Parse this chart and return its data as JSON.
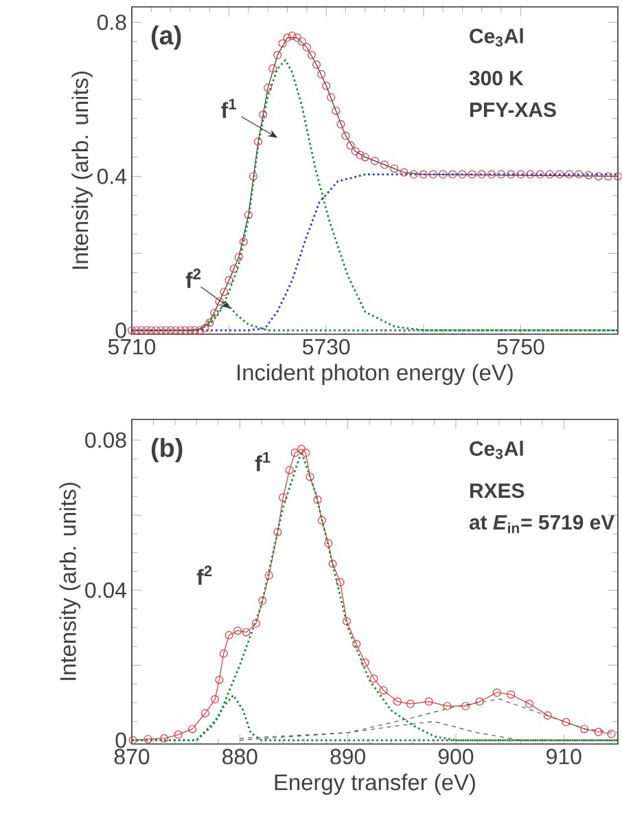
{
  "chart_data": [
    {
      "type": "line",
      "xlabel": "Incident photon energy (eV)",
      "ylabel": "Intensity (arb. units)",
      "xlim": [
        5710,
        5760
      ],
      "ylim": [
        -0.01,
        0.84
      ],
      "xticks": [
        5710,
        {
          "value": 5720,
          "label": null
        },
        5730,
        {
          "value": 5740,
          "label": null
        },
        5750
      ],
      "yticks": [
        0,
        {
          "value": 0.2,
          "label": null
        },
        0.4,
        {
          "value": 0.6,
          "label": null
        },
        0.8
      ],
      "annotations": [
        "(a)",
        "Ce$_{3}$Al",
        "300 K",
        "PFY-XAS",
        "f$^{1}$",
        {
          "text": "f$^{2}$",
          "x": 5720.2,
          "y": 0.056
        }
      ],
      "series": [
        {
          "type": "scatter",
          "marker": "circle",
          "color": "#e5323c",
          "x": [
            5710,
            5710.5,
            5711,
            5711.5,
            5712,
            5712.5,
            5713,
            5713.5,
            5714,
            5714.5,
            5715,
            5715.5,
            5716,
            5716.5,
            5717,
            5717.5,
            5718,
            5718.5,
            5719,
            5719.5,
            5720,
            5720.5,
            5721,
            5721.5,
            5722,
            5722.5,
            5723,
            5723.5,
            5724,
            5724.5,
            5725,
            5725.5,
            5726,
            5726.5,
            5727,
            5727.5,
            5728,
            5728.5,
            5729,
            5729.5,
            5730,
            5730.5,
            5731,
            5731.5,
            5732,
            5732.5,
            5733,
            5733.5,
            5734,
            5735,
            5736,
            5737,
            5738,
            5739,
            5740,
            5741,
            5742,
            5743,
            5744,
            5745,
            5746,
            5747,
            5748,
            5749,
            5750,
            5751,
            5752,
            5753,
            5754,
            5755,
            5756,
            5757,
            5758,
            5759,
            5760
          ],
          "values": [
            0,
            0,
            0,
            0,
            0,
            0,
            0,
            0,
            0,
            0,
            0,
            0,
            0,
            0,
            0,
            0.005,
            0.02,
            0.045,
            0.075,
            0.1,
            0.13,
            0.16,
            0.19,
            0.23,
            0.3,
            0.4,
            0.49,
            0.56,
            0.63,
            0.68,
            0.715,
            0.745,
            0.76,
            0.765,
            0.76,
            0.75,
            0.735,
            0.715,
            0.69,
            0.665,
            0.635,
            0.605,
            0.57,
            0.535,
            0.505,
            0.48,
            0.465,
            0.455,
            0.45,
            0.44,
            0.43,
            0.42,
            0.41,
            0.405,
            0.405,
            0.405,
            0.405,
            0.405,
            0.405,
            0.405,
            0.405,
            0.405,
            0.405,
            0.405,
            0.405,
            0.405,
            0.405,
            0.405,
            0.405,
            0.405,
            0.405,
            0.403,
            0.4,
            0.4,
            0.4
          ]
        },
        {
          "line_style": "solid",
          "color": "#333333",
          "x": [
            5710,
            5716,
            5717,
            5718,
            5719,
            5720,
            5721,
            5722,
            5723,
            5724,
            5725,
            5726,
            5727,
            5728,
            5729,
            5730,
            5731,
            5732,
            5733,
            5734,
            5736,
            5738,
            5740,
            5760
          ],
          "values": [
            0,
            0,
            0.003,
            0.02,
            0.075,
            0.13,
            0.19,
            0.3,
            0.49,
            0.63,
            0.715,
            0.76,
            0.76,
            0.735,
            0.69,
            0.635,
            0.57,
            0.505,
            0.465,
            0.45,
            0.43,
            0.41,
            0.405,
            0.4
          ]
        },
        {
          "line_style": "dotted",
          "color": "#1a8a3a",
          "x": [
            5716,
            5717,
            5718,
            5719,
            5720,
            5721,
            5722,
            5723,
            5724,
            5725,
            5725.8,
            5726.5,
            5727.5,
            5728.9,
            5730.3,
            5732.2,
            5734,
            5737,
            5740,
            5760
          ],
          "values": [
            0,
            0.003,
            0.015,
            0.045,
            0.1,
            0.17,
            0.29,
            0.48,
            0.61,
            0.68,
            0.702,
            0.67,
            0.583,
            0.418,
            0.286,
            0.143,
            0.048,
            0.01,
            0,
            0
          ]
        },
        {
          "line_style": "dotted",
          "color": "#1a8a3a",
          "x": [
            5710,
            5717,
            5718.5,
            5719.7,
            5720.8,
            5722,
            5724,
            5760
          ],
          "values": [
            0,
            0,
            0.04,
            0.071,
            0.04,
            0.015,
            0,
            0
          ]
        },
        {
          "line_style": "dotted",
          "color": "#2040c0",
          "x": [
            5710,
            5722,
            5723.7,
            5725,
            5726.5,
            5727.9,
            5729.3,
            5731.2,
            5734,
            5760
          ],
          "values": [
            0,
            0,
            0.005,
            0.05,
            0.13,
            0.238,
            0.333,
            0.387,
            0.405,
            0.405
          ]
        }
      ]
    },
    {
      "type": "line",
      "xlabel": "Energy transfer (eV)",
      "ylabel": "Intensity (arb. units)",
      "xlim": [
        870,
        915
      ],
      "ylim": [
        -0.001,
        0.0855
      ],
      "xticks": [
        870,
        880,
        890,
        900,
        910
      ],
      "yticks": [
        0,
        {
          "value": 0.02,
          "label": null
        },
        0.04,
        {
          "value": 0.06,
          "label": null
        },
        0.08
      ],
      "annotations": [
        "(b)",
        "Ce$_{3}$Al",
        "RXES",
        "at *E*$_{in}$= 5719 eV",
        "f$^{1}$",
        "f$^{2}$"
      ],
      "series": [
        {
          "marker": "circle",
          "line_style": "solid",
          "color": "#e5323c",
          "x": [
            870.1,
            871.5,
            873.0,
            874.3,
            875.6,
            876.8,
            877.7,
            878.1,
            878.5,
            879.0,
            879.8,
            880.6,
            881.5,
            882.1,
            882.7,
            883.5,
            884.0,
            884.6,
            885.1,
            885.7,
            886.1,
            886.5,
            887.2,
            887.6,
            888.2,
            888.6,
            889.3,
            889.9,
            890.8,
            891.6,
            892.4,
            893.3,
            894.6,
            895.8,
            897.5,
            899.2,
            900.9,
            902.2,
            903.8,
            905.1,
            906.8,
            908.5,
            910.2,
            911.9,
            913.2,
            914.4
          ],
          "values": [
            0,
            0.0003,
            0.0005,
            0.0015,
            0.003,
            0.0072,
            0.0109,
            0.0161,
            0.0231,
            0.028,
            0.0292,
            0.0288,
            0.0311,
            0.0372,
            0.0439,
            0.0555,
            0.0647,
            0.072,
            0.0766,
            0.0776,
            0.0766,
            0.0702,
            0.0641,
            0.0586,
            0.0525,
            0.047,
            0.0421,
            0.0317,
            0.0256,
            0.0207,
            0.0164,
            0.0133,
            0.0103,
            0.0097,
            0.0103,
            0.0091,
            0.0091,
            0.0103,
            0.0127,
            0.0122,
            0.0097,
            0.0066,
            0.0048,
            0.003,
            0.0022,
            0.0017
          ]
        },
        {
          "line_style": "dotted",
          "color": "#1a8a3a",
          "x": [
            870,
            876,
            878,
            880,
            882,
            884,
            885.7,
            887,
            888.5,
            890,
            892,
            894,
            896,
            898,
            900,
            915
          ],
          "values": [
            0,
            0,
            0.006,
            0.02,
            0.036,
            0.062,
            0.077,
            0.066,
            0.048,
            0.03,
            0.016,
            0.008,
            0.004,
            0.001,
            0,
            0
          ]
        },
        {
          "line_style": "dotted",
          "color": "#1a8a3a",
          "x": [
            870,
            876,
            877.5,
            878.5,
            879.4,
            880.3,
            881,
            882,
            915
          ],
          "values": [
            0,
            0,
            0.004,
            0.009,
            0.012,
            0.008,
            0.002,
            0,
            0
          ]
        },
        {
          "line_style": "dashed",
          "color": "#555555",
          "x": [
            880,
            890,
            895,
            898,
            902,
            906,
            915
          ],
          "values": [
            0.0005,
            0.002,
            0.004,
            0.005,
            0.002,
            0,
            0
          ]
        },
        {
          "line_style": "dashed",
          "color": "#555555",
          "x": [
            880,
            890,
            896,
            900,
            904,
            908,
            912,
            915
          ],
          "values": [
            0,
            0.002,
            0.006,
            0.009,
            0.011,
            0.007,
            0.003,
            0.002
          ]
        }
      ]
    }
  ]
}
